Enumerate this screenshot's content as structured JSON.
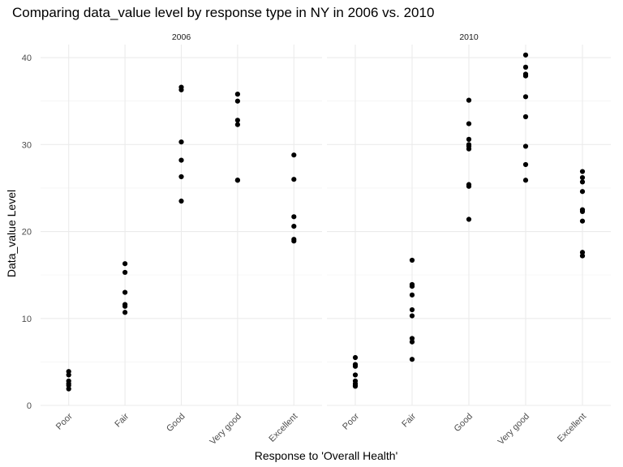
{
  "chart_data": {
    "type": "scatter",
    "title": "Comparing data_value level by response type in NY in 2006 vs. 2010",
    "xlabel": "Response to 'Overall Health'",
    "ylabel": "Data_value Level",
    "categories": [
      "Poor",
      "Fair",
      "Good",
      "Very good",
      "Excellent"
    ],
    "ylim": [
      0,
      41.5
    ],
    "yticks": [
      "0",
      "10",
      "20",
      "30",
      "40"
    ],
    "grid": true,
    "point_color": "#000000",
    "facets": [
      {
        "label": "2006",
        "points": {
          "Poor": [
            3.9,
            3.5,
            2.8,
            2.5,
            2.3,
            1.9
          ],
          "Fair": [
            16.3,
            15.3,
            13.0,
            11.6,
            11.4,
            10.7
          ],
          "Good": [
            36.6,
            36.3,
            30.3,
            28.2,
            26.3,
            23.5
          ],
          "Very good": [
            35.8,
            35.0,
            32.8,
            32.3,
            25.9,
            25.9
          ],
          "Excellent": [
            28.8,
            26.0,
            21.7,
            20.6,
            19.1,
            18.9
          ]
        }
      },
      {
        "label": "2010",
        "points": {
          "Poor": [
            5.5,
            4.7,
            4.5,
            3.5,
            2.8,
            2.5,
            2.3,
            2.2
          ],
          "Fair": [
            16.7,
            13.9,
            13.7,
            12.7,
            11.0,
            10.3,
            7.7,
            7.3,
            5.3
          ],
          "Good": [
            35.1,
            32.4,
            30.6,
            30.0,
            29.8,
            29.5,
            25.4,
            25.2,
            21.4
          ],
          "Very good": [
            40.3,
            38.9,
            38.1,
            37.9,
            35.5,
            33.2,
            29.8,
            27.7,
            25.9
          ],
          "Excellent": [
            26.9,
            26.2,
            25.7,
            24.6,
            22.5,
            22.3,
            21.2,
            17.6,
            17.2
          ]
        }
      }
    ]
  }
}
